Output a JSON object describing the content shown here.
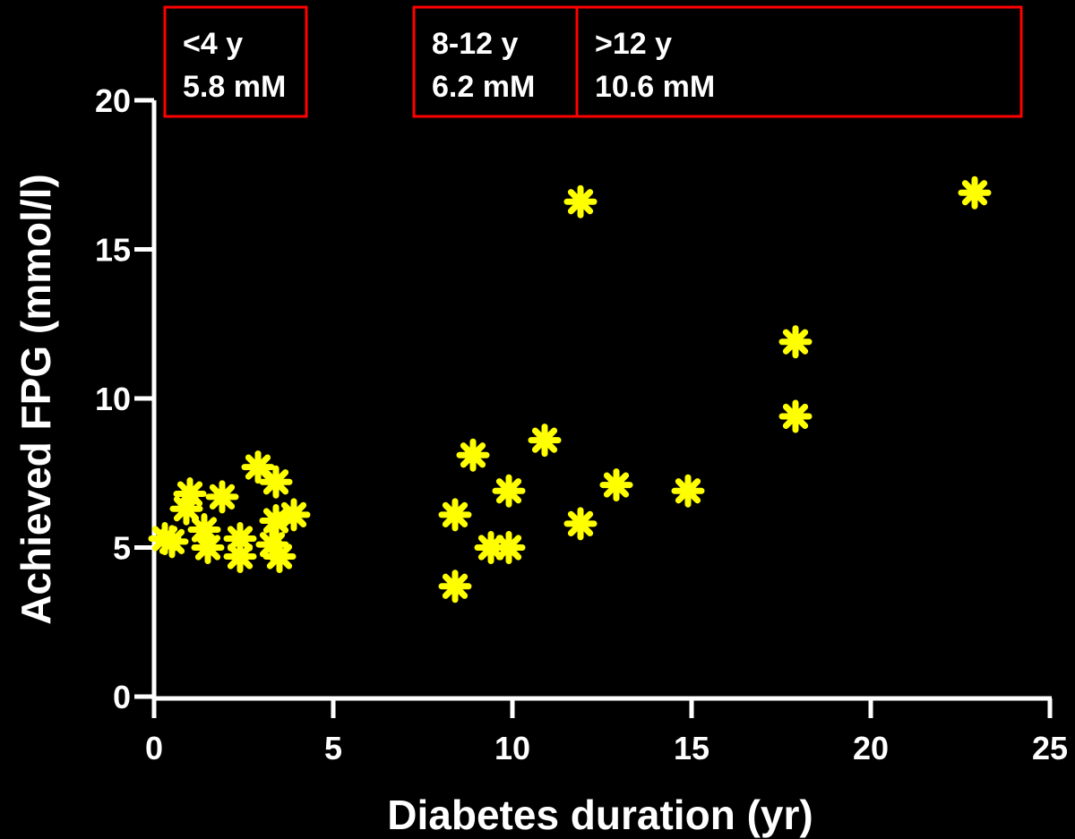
{
  "chart_data": {
    "type": "scatter",
    "title": "",
    "xlabel": "Diabetes duration (yr)",
    "ylabel": "Achieved FPG (mmol/l)",
    "xlim": [
      0,
      25
    ],
    "ylim": [
      0,
      20
    ],
    "xticks": [
      "0",
      "5",
      "10",
      "15",
      "20",
      "25"
    ],
    "yticks": [
      "0",
      "5",
      "10",
      "15",
      "20"
    ],
    "grid": false,
    "legend": "none",
    "marker": "asterisk",
    "marker_color": "#FFFF00",
    "axis_color": "#FFFFFF",
    "background_color": "#000000",
    "group_boxes": [
      {
        "range": [
          0,
          4
        ],
        "label": "<4 y",
        "value": "5.8 mM",
        "border_color": "#FF0000"
      },
      {
        "range": [
          8,
          12
        ],
        "label": "8-12 y",
        "value": "6.2 mM",
        "border_color": "#FF0000"
      },
      {
        "range": [
          12,
          25
        ],
        "label": ">12 y",
        "value": "10.6 mM",
        "border_color": "#FF0000"
      }
    ],
    "points": [
      {
        "x": 0.3,
        "y": 5.3
      },
      {
        "x": 0.5,
        "y": 5.2
      },
      {
        "x": 0.9,
        "y": 6.3
      },
      {
        "x": 1.0,
        "y": 6.8
      },
      {
        "x": 1.4,
        "y": 5.6
      },
      {
        "x": 1.5,
        "y": 5.0
      },
      {
        "x": 1.9,
        "y": 6.7
      },
      {
        "x": 2.4,
        "y": 5.3
      },
      {
        "x": 2.4,
        "y": 4.7
      },
      {
        "x": 2.9,
        "y": 7.7
      },
      {
        "x": 3.3,
        "y": 5.1
      },
      {
        "x": 3.4,
        "y": 7.2
      },
      {
        "x": 3.4,
        "y": 5.9
      },
      {
        "x": 3.5,
        "y": 4.7
      },
      {
        "x": 3.9,
        "y": 6.1
      },
      {
        "x": 8.4,
        "y": 6.1
      },
      {
        "x": 8.4,
        "y": 3.7
      },
      {
        "x": 8.9,
        "y": 8.1
      },
      {
        "x": 9.4,
        "y": 5.0
      },
      {
        "x": 9.9,
        "y": 5.0
      },
      {
        "x": 9.9,
        "y": 6.9
      },
      {
        "x": 10.9,
        "y": 8.6
      },
      {
        "x": 11.9,
        "y": 5.8
      },
      {
        "x": 11.9,
        "y": 16.6
      },
      {
        "x": 12.9,
        "y": 7.1
      },
      {
        "x": 14.9,
        "y": 6.9
      },
      {
        "x": 17.9,
        "y": 9.4
      },
      {
        "x": 17.9,
        "y": 11.9
      },
      {
        "x": 22.9,
        "y": 16.9
      }
    ]
  }
}
